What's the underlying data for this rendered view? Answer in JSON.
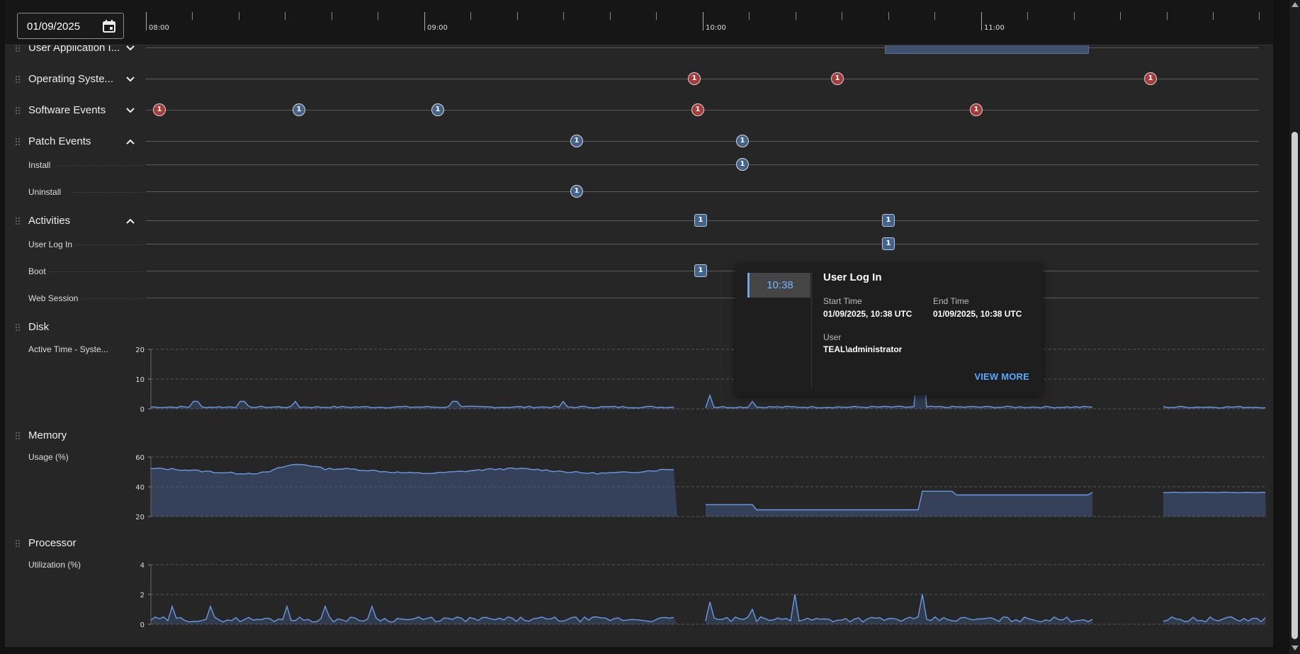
{
  "date_picker": {
    "value": "01/09/2025",
    "icon": "calendar-icon"
  },
  "ruler": {
    "labels": [
      "08:00",
      "09:00",
      "10:00",
      "11:00"
    ]
  },
  "rows": [
    {
      "label": "User Application I...",
      "expanded": false
    },
    {
      "label": "Operating Syste...",
      "expanded": false
    },
    {
      "label": "Software Events",
      "expanded": false
    },
    {
      "label": "Patch Events",
      "expanded": true
    },
    {
      "label": "Activities",
      "expanded": true
    }
  ],
  "sub_rows": {
    "install": "Install",
    "uninstall": "Uninstall",
    "user_log_in": "User Log In",
    "boot": "Boot",
    "web_session": "Web Session"
  },
  "event_count": "1",
  "status_colors": {
    "error": "#a83a3a",
    "info": "#42648c",
    "accent": "#5aa8ff"
  },
  "metrics": {
    "disk": {
      "title": "Disk",
      "label": "Active Time - Syste...",
      "ticks": [
        "20",
        "10",
        "0"
      ]
    },
    "memory": {
      "title": "Memory",
      "label": "Usage (%)",
      "ticks": [
        "60",
        "40",
        "20"
      ]
    },
    "processor": {
      "title": "Processor",
      "label": "Utilization (%)",
      "ticks": [
        "4",
        "2",
        "0"
      ]
    }
  },
  "tooltip": {
    "time": "10:38",
    "title": "User Log In",
    "start_time_label": "Start Time",
    "start_time_value": "01/09/2025, 10:38 UTC",
    "end_time_label": "End Time",
    "end_time_value": "01/09/2025, 10:38 UTC",
    "user_label": "User",
    "user_value": "TEAL\\administrator",
    "view_more": "VIEW MORE"
  }
}
